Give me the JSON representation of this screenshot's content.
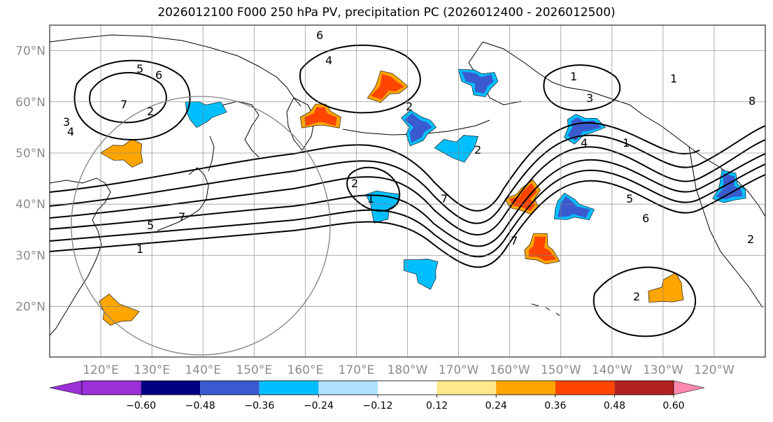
{
  "title": "2026012100 F000 250 hPa PV, precipitation PC (2026012400 - 2026012500)",
  "map": {
    "lat_labels": [
      {
        "lat": 70,
        "text": "70°N"
      },
      {
        "lat": 60,
        "text": "60°N"
      },
      {
        "lat": 50,
        "text": "50°N"
      },
      {
        "lat": 40,
        "text": "40°N"
      },
      {
        "lat": 30,
        "text": "30°N"
      },
      {
        "lat": 20,
        "text": "20°N"
      }
    ],
    "lon_labels": [
      {
        "lon": 120,
        "text": "120°E"
      },
      {
        "lon": 130,
        "text": "130°E"
      },
      {
        "lon": 140,
        "text": "140°E"
      },
      {
        "lon": 150,
        "text": "150°E"
      },
      {
        "lon": 160,
        "text": "160°E"
      },
      {
        "lon": 170,
        "text": "170°E"
      },
      {
        "lon": 180,
        "text": "180°W"
      },
      {
        "lon": 190,
        "text": "170°W"
      },
      {
        "lon": 200,
        "text": "160°W"
      },
      {
        "lon": 210,
        "text": "150°W"
      },
      {
        "lon": 220,
        "text": "140°W"
      },
      {
        "lon": 230,
        "text": "130°W"
      },
      {
        "lon": 240,
        "text": "120°W"
      }
    ],
    "contour_labels": [
      "5",
      "6",
      "7",
      "2",
      "3",
      "4",
      "6",
      "4",
      "7",
      "2",
      "1",
      "2",
      "5",
      "2",
      "7",
      "3",
      "1",
      "2",
      "4",
      "1",
      "7",
      "8",
      "5",
      "6",
      "1",
      "2",
      "1"
    ]
  },
  "colorbar": {
    "colors": [
      "#9b30d9",
      "#000080",
      "#3a5bd0",
      "#00bfff",
      "#b0e2ff",
      "#ffffff",
      "#ffe98a",
      "#ffa500",
      "#ff4500",
      "#b22222",
      "#ff88b0"
    ],
    "tick_labels": [
      "−0.60",
      "−0.48",
      "−0.36",
      "−0.24",
      "−0.12",
      "0.12",
      "0.24",
      "0.36",
      "0.48",
      "0.60"
    ]
  },
  "precip_blobs": [
    {
      "color": "#ff4500",
      "lon": 163,
      "lat": 57
    },
    {
      "color": "#ff4500",
      "lon": 176,
      "lat": 63
    },
    {
      "color": "#3a5bd0",
      "lon": 182,
      "lat": 55
    },
    {
      "color": "#3a5bd0",
      "lon": 194,
      "lat": 64
    },
    {
      "color": "#00bfff",
      "lon": 190,
      "lat": 51
    },
    {
      "color": "#ff4500",
      "lon": 203,
      "lat": 41
    },
    {
      "color": "#ff4500",
      "lon": 206,
      "lat": 31
    },
    {
      "color": "#3a5bd0",
      "lon": 212,
      "lat": 39
    },
    {
      "color": "#3a5bd0",
      "lon": 214,
      "lat": 55
    },
    {
      "color": "#00bfff",
      "lon": 175,
      "lat": 40
    },
    {
      "color": "#00bfff",
      "lon": 183,
      "lat": 27
    },
    {
      "color": "#ffa500",
      "lon": 125,
      "lat": 50
    },
    {
      "color": "#ffa500",
      "lon": 231,
      "lat": 23
    },
    {
      "color": "#3a5bd0",
      "lon": 243,
      "lat": 43
    },
    {
      "color": "#ffa500",
      "lon": 123,
      "lat": 19
    },
    {
      "color": "#00bfff",
      "lon": 140,
      "lat": 58
    }
  ]
}
